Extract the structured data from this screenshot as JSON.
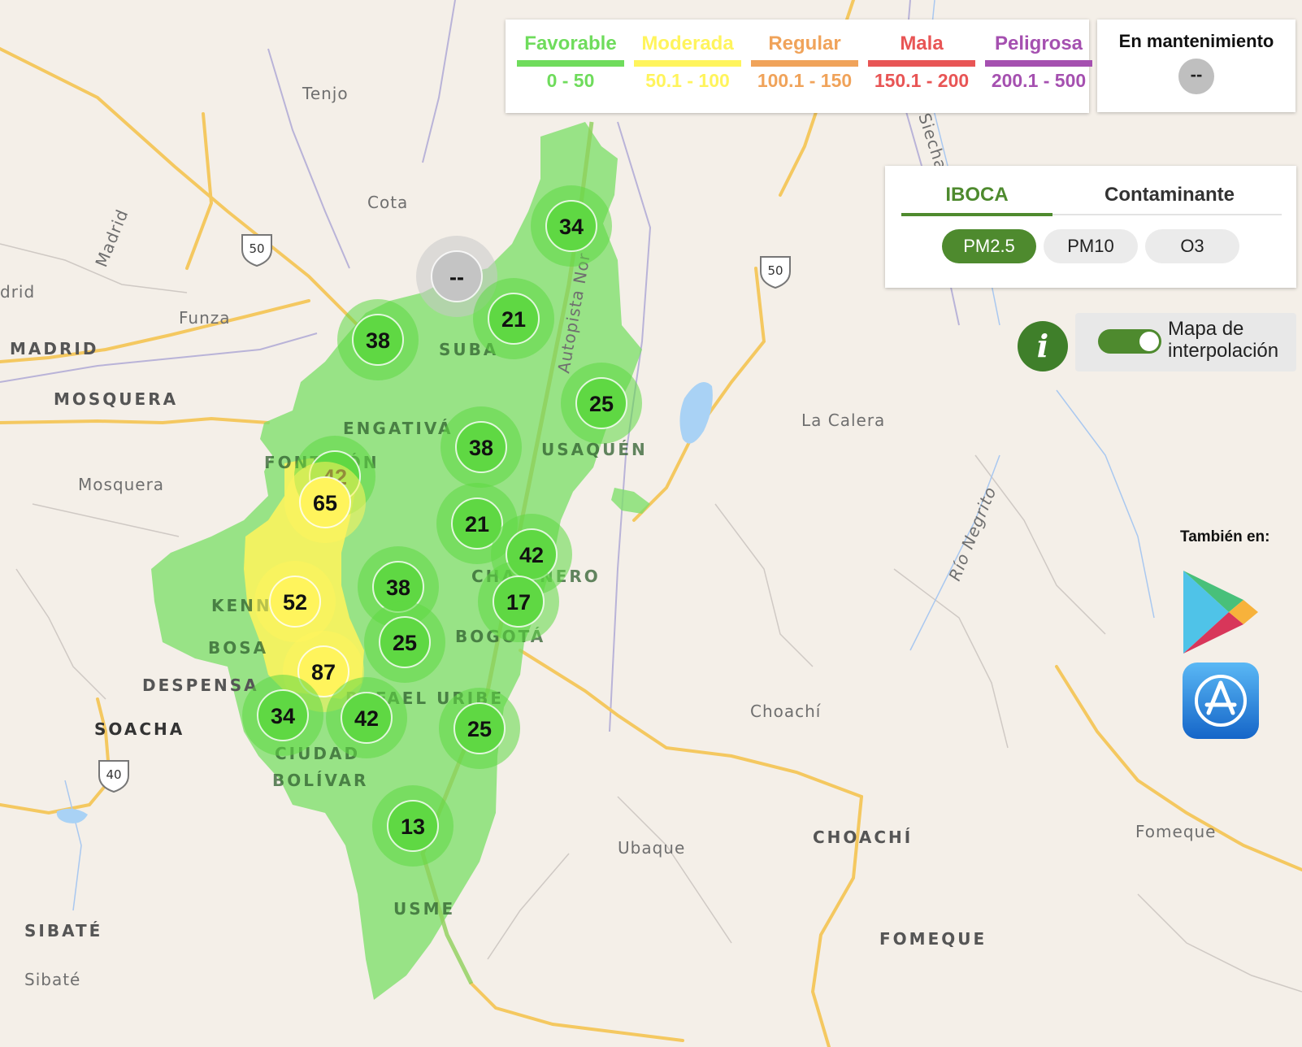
{
  "legend": [
    {
      "label": "Favorable",
      "range": "0 - 50",
      "color": "#6fdc5c"
    },
    {
      "label": "Moderada",
      "range": "50.1 - 100",
      "color": "#fff45c"
    },
    {
      "label": "Regular",
      "range": "100.1 - 150",
      "color": "#f0a35a"
    },
    {
      "label": "Mala",
      "range": "150.1 - 200",
      "color": "#e85555"
    },
    {
      "label": "Peligrosa",
      "range": "200.1 - 500",
      "color": "#a550b0"
    }
  ],
  "maintenance": {
    "title": "En mantenimiento",
    "value": "--"
  },
  "tabs": {
    "iboca": "IBOCA",
    "contaminante": "Contaminante",
    "active": "IBOCA"
  },
  "pollutants": [
    {
      "label": "PM2.5",
      "active": true
    },
    {
      "label": "PM10",
      "active": false
    },
    {
      "label": "O3",
      "active": false
    }
  ],
  "info_icon": "i",
  "interpolation": {
    "label_line1": "Mapa de",
    "label_line2": "interpolación",
    "enabled": true
  },
  "also_on": "También en:",
  "store_icons": [
    "google-play-icon",
    "app-store-icon"
  ],
  "highway_shields": [
    "50",
    "50",
    "40"
  ],
  "places": [
    "Tenjo",
    "Cota",
    "Madrid",
    "drid",
    "Funza",
    "MADRID",
    "MOSQUERA",
    "Mosquera",
    "La Calera",
    "Siecha",
    "Río Negrito",
    "Choachí",
    "CHOACHÍ",
    "Ubaque",
    "Fomeque",
    "FOMEQUE",
    "SOACHA",
    "SIBATÉ",
    "Sibaté",
    "DESPENSA",
    "Autopista Nor"
  ],
  "districts": [
    "SUBA",
    "ENGATIVÁ",
    "USAQUÉN",
    "FONTIBÓN",
    "KENNEDY",
    "BOSA",
    "CHAPINERO",
    "BOGOTÁ",
    "RAFAEL URIBE",
    "CIUDAD",
    "BOLÍVAR",
    "USME"
  ],
  "stations": [
    {
      "value": "34",
      "level": "favorable"
    },
    {
      "value": "--",
      "level": "maintenance"
    },
    {
      "value": "21",
      "level": "favorable"
    },
    {
      "value": "38",
      "level": "favorable"
    },
    {
      "value": "25",
      "level": "favorable"
    },
    {
      "value": "38",
      "level": "favorable"
    },
    {
      "value": "42",
      "level": "favorable"
    },
    {
      "value": "65",
      "level": "moderada"
    },
    {
      "value": "21",
      "level": "favorable"
    },
    {
      "value": "42",
      "level": "favorable"
    },
    {
      "value": "38",
      "level": "favorable"
    },
    {
      "value": "17",
      "level": "favorable"
    },
    {
      "value": "52",
      "level": "moderada"
    },
    {
      "value": "25",
      "level": "favorable"
    },
    {
      "value": "87",
      "level": "moderada"
    },
    {
      "value": "34",
      "level": "favorable"
    },
    {
      "value": "42",
      "level": "favorable"
    },
    {
      "value": "25",
      "level": "favorable"
    },
    {
      "value": "13",
      "level": "favorable"
    }
  ]
}
